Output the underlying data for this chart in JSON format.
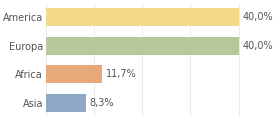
{
  "categories": [
    "Asia",
    "Africa",
    "Europa",
    "America"
  ],
  "values": [
    8.3,
    11.7,
    40.0,
    40.0
  ],
  "bar_colors": [
    "#8fa8c8",
    "#e8a97a",
    "#b5c99a",
    "#f5d98b"
  ],
  "labels": [
    "8,3%",
    "11,7%",
    "40,0%",
    "40,0%"
  ],
  "xlim": [
    0,
    48
  ],
  "background_color": "#ffffff",
  "text_color": "#555555",
  "label_fontsize": 7.0,
  "tick_fontsize": 7.0,
  "bar_height": 0.62,
  "grid_color": "#e0e0e0",
  "grid_xticks": [
    0,
    10,
    20,
    30,
    40
  ]
}
